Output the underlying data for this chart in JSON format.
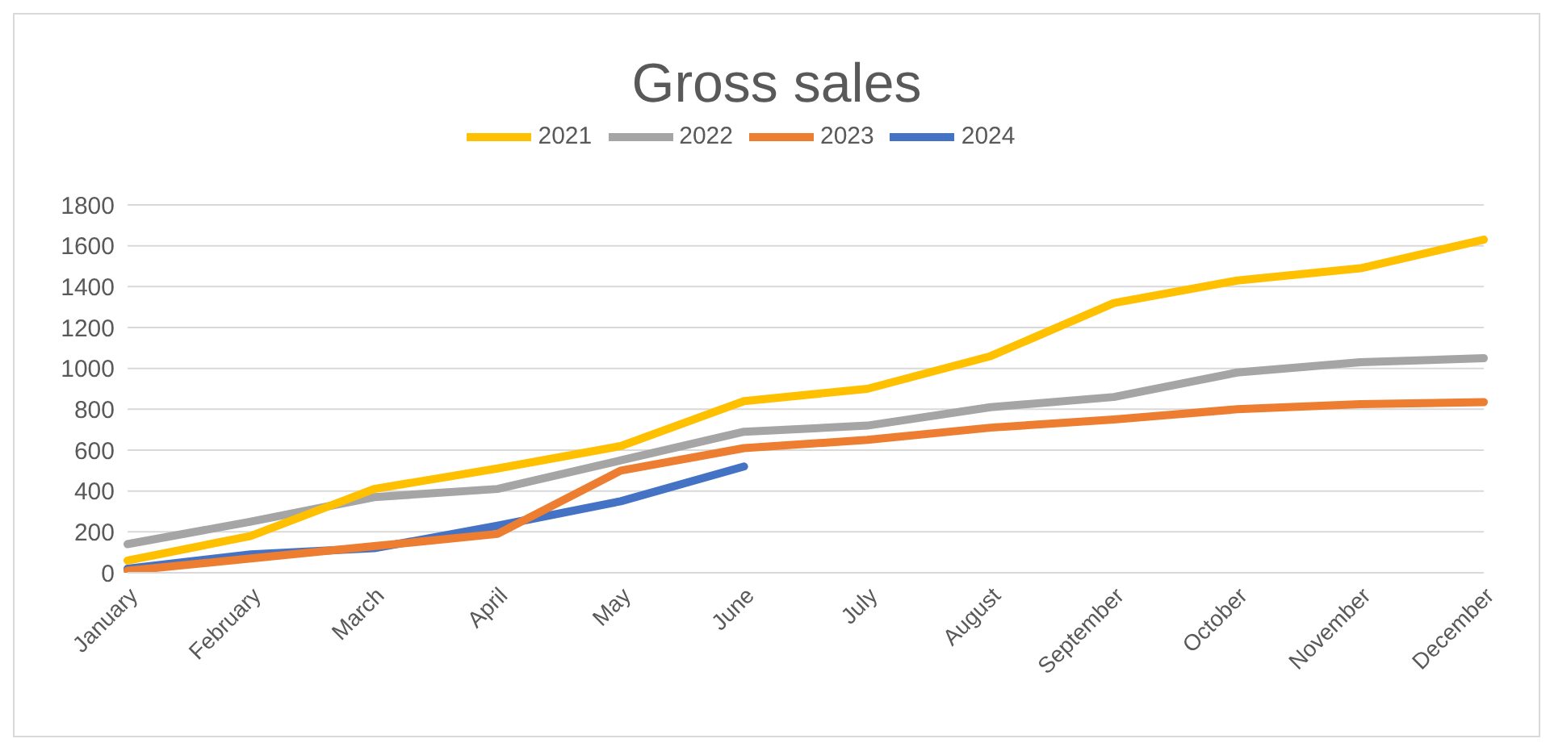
{
  "chart_data": {
    "type": "line",
    "title": "Gross sales",
    "categories": [
      "January",
      "February",
      "March",
      "April",
      "May",
      "June",
      "July",
      "August",
      "September",
      "October",
      "November",
      "December"
    ],
    "series": [
      {
        "name": "2024",
        "color": "#4472c4",
        "values": [
          20,
          90,
          120,
          230,
          350,
          520,
          null,
          null,
          null,
          null,
          null,
          null
        ]
      },
      {
        "name": "2023",
        "color": "#ed7d31",
        "values": [
          10,
          70,
          130,
          190,
          500,
          610,
          650,
          710,
          750,
          800,
          825,
          835
        ]
      },
      {
        "name": "2022",
        "color": "#a5a5a5",
        "values": [
          140,
          250,
          370,
          410,
          550,
          690,
          720,
          810,
          860,
          980,
          1030,
          1050
        ]
      },
      {
        "name": "2021",
        "color": "#ffc000",
        "values": [
          60,
          180,
          410,
          510,
          620,
          840,
          900,
          1060,
          1320,
          1430,
          1490,
          1630
        ]
      }
    ],
    "ylim": [
      0,
      1800
    ],
    "yticks": [
      0,
      200,
      400,
      600,
      800,
      1000,
      1200,
      1400,
      1600,
      1800
    ],
    "grid": "y",
    "legend": "top",
    "marker": "none",
    "line_style": "solid"
  }
}
